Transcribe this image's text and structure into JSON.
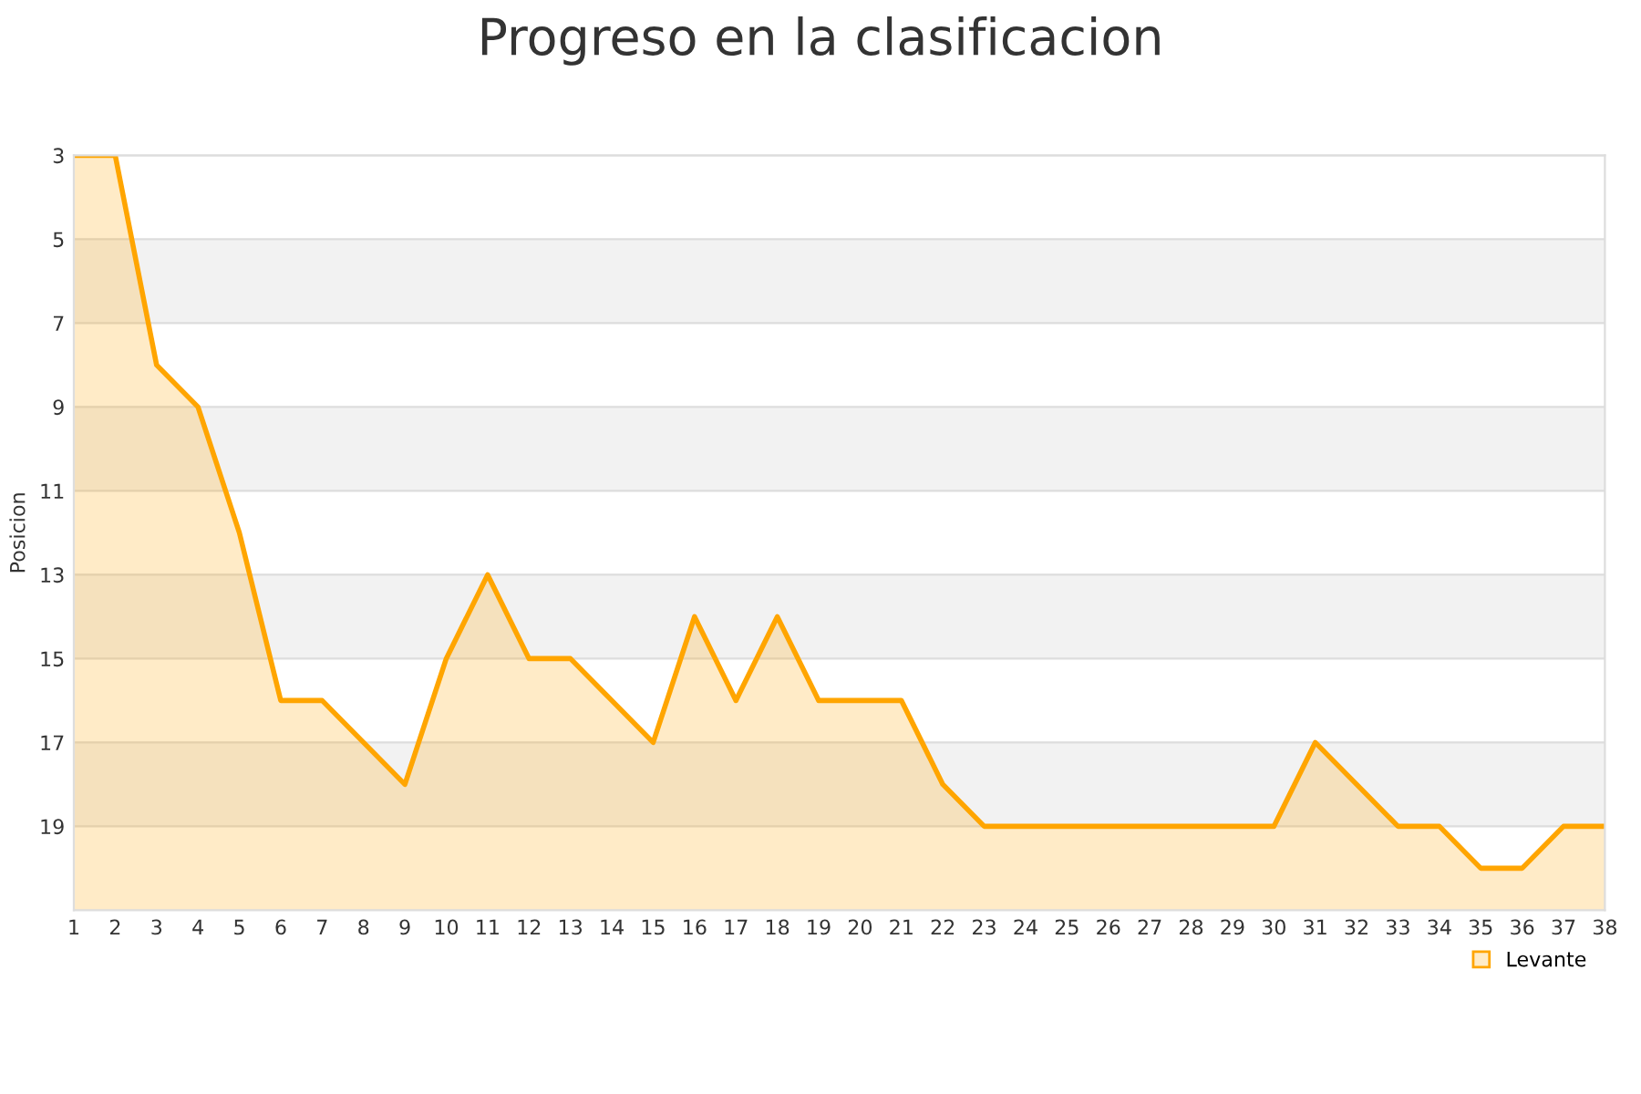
{
  "chart_data": {
    "type": "area",
    "title": "Progreso en la clasificacion",
    "ylabel": "Posicion",
    "x": [
      1,
      2,
      3,
      4,
      5,
      6,
      7,
      8,
      9,
      10,
      11,
      12,
      13,
      14,
      15,
      16,
      17,
      18,
      19,
      20,
      21,
      22,
      23,
      24,
      25,
      26,
      27,
      28,
      29,
      30,
      31,
      32,
      33,
      34,
      35,
      36,
      37,
      38
    ],
    "series": [
      {
        "name": "Levante",
        "color": "#ffa500",
        "values": [
          3,
          3,
          8,
          9,
          12,
          16,
          16,
          17,
          18,
          15,
          13,
          15,
          15,
          16,
          17,
          14,
          16,
          14,
          16,
          16,
          16,
          18,
          19,
          19,
          19,
          19,
          19,
          19,
          19,
          19,
          17,
          18,
          19,
          19,
          20,
          20,
          19,
          19
        ]
      }
    ],
    "xlim": [
      1,
      38
    ],
    "xticks": [
      1,
      2,
      3,
      4,
      5,
      6,
      7,
      8,
      9,
      10,
      11,
      12,
      13,
      14,
      15,
      16,
      17,
      18,
      19,
      20,
      21,
      22,
      23,
      24,
      25,
      26,
      27,
      28,
      29,
      30,
      31,
      32,
      33,
      34,
      35,
      36,
      37,
      38
    ],
    "ylim": [
      21,
      3
    ],
    "yticks": [
      3,
      5,
      7,
      9,
      11,
      13,
      15,
      17,
      19
    ],
    "bands": [
      {
        "axis": "y",
        "from": 5,
        "to": 7,
        "color": "#f2f2f2"
      },
      {
        "axis": "y",
        "from": 9,
        "to": 11,
        "color": "#f2f2f2"
      },
      {
        "axis": "y",
        "from": 13,
        "to": 15,
        "color": "#f2f2f2"
      },
      {
        "axis": "y",
        "from": 17,
        "to": 19,
        "color": "#f2f2f2"
      }
    ],
    "grid": "y",
    "legend": "bottom right",
    "line_style": "solid"
  }
}
